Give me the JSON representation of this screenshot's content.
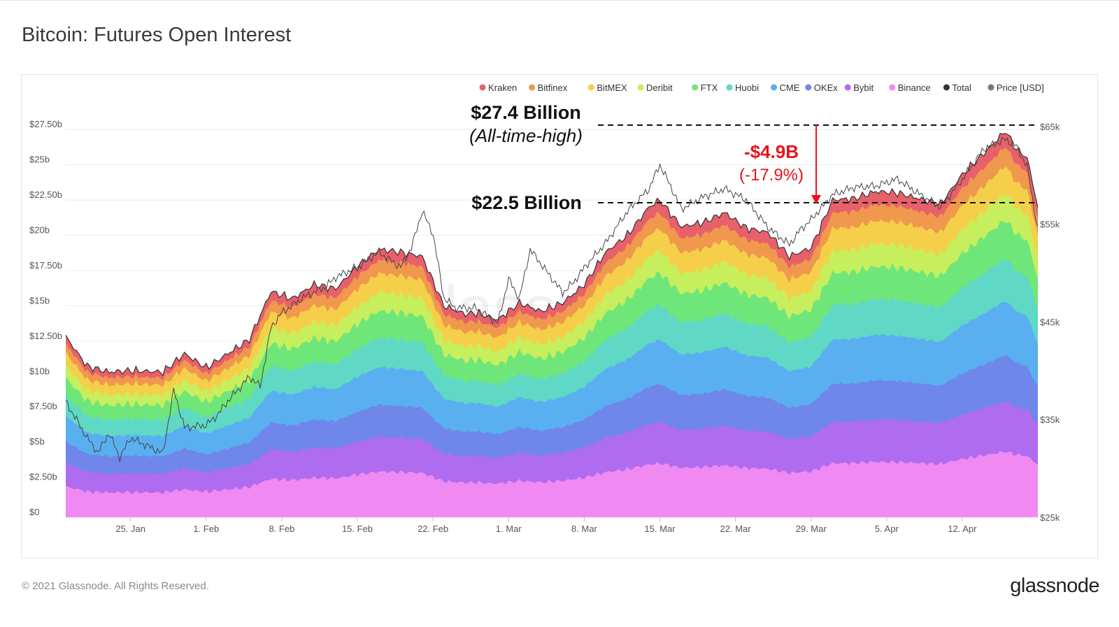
{
  "page": {
    "title": "Bitcoin: Futures Open Interest",
    "copyright": "© 2021 Glassnode. All Rights Reserved.",
    "brand": "glassnode",
    "watermark": "glassnode"
  },
  "chart_data": {
    "type": "area",
    "stacked": true,
    "title": "Bitcoin: Futures Open Interest",
    "x_ticks": [
      "25. Jan",
      "1. Feb",
      "8. Feb",
      "15. Feb",
      "22. Feb",
      "1. Mar",
      "8. Mar",
      "15. Mar",
      "22. Mar",
      "29. Mar",
      "5. Apr",
      "12. Apr"
    ],
    "x_tick_days": [
      6,
      13,
      20,
      27,
      34,
      41,
      48,
      55,
      62,
      69,
      76,
      83
    ],
    "x_range_days": [
      0,
      90
    ],
    "y_left": {
      "ticks": [
        "$0",
        "$2.50b",
        "$5b",
        "$7.50b",
        "$10b",
        "$12.50b",
        "$15b",
        "$17.50b",
        "$20b",
        "$22.50b",
        "$25b",
        "$27.50b"
      ],
      "tick_values": [
        0,
        2.5,
        5,
        7.5,
        10,
        12.5,
        15,
        17.5,
        20,
        22.5,
        25,
        27.5
      ],
      "range": [
        0,
        28.75
      ]
    },
    "y_right": {
      "ticks": [
        "$25k",
        "$35k",
        "$45k",
        "$55k",
        "$65k"
      ],
      "tick_values": [
        25000,
        35000,
        45000,
        55000,
        65000
      ],
      "range": [
        25000,
        66500
      ]
    },
    "legend": [
      {
        "name": "Kraken",
        "color": "#e8606a"
      },
      {
        "name": "Bitfinex",
        "color": "#f0984e"
      },
      {
        "name": "BitMEX",
        "color": "#f5cf4a"
      },
      {
        "name": "Deribit",
        "color": "#c7ee5c"
      },
      {
        "name": "FTX",
        "color": "#6ee67a"
      },
      {
        "name": "Huobi",
        "color": "#5fd8c5"
      },
      {
        "name": "CME",
        "color": "#5aaff0"
      },
      {
        "name": "OKEx",
        "color": "#6f86ea"
      },
      {
        "name": "Bybit",
        "color": "#b06cf0"
      },
      {
        "name": "Binance",
        "color": "#f08af2"
      },
      {
        "name": "Total",
        "color": "#333333"
      },
      {
        "name": "Price [USD]",
        "color": "#777777"
      }
    ],
    "series_bottom_to_top": [
      "Binance",
      "Bybit",
      "OKEx",
      "CME",
      "Huobi",
      "FTX",
      "Deribit",
      "BitMEX",
      "Bitfinex",
      "Kraken"
    ],
    "total_open_interest_b": {
      "x": [
        0,
        2,
        4,
        6,
        9,
        11,
        13,
        15,
        17,
        19,
        21,
        23,
        25,
        27,
        29,
        31,
        33,
        35,
        37,
        38,
        40,
        42,
        44,
        46,
        48,
        50,
        52,
        54,
        55,
        57,
        59,
        61,
        63,
        65,
        67,
        69,
        71,
        73,
        75,
        77,
        79,
        81,
        83,
        85,
        87,
        88,
        89,
        90
      ],
      "y": [
        12.8,
        10.7,
        10.3,
        10.4,
        10.3,
        11.6,
        10.6,
        11.6,
        12.6,
        16.0,
        15.5,
        16.5,
        16.2,
        17.8,
        19.0,
        18.8,
        18.5,
        15.0,
        14.4,
        14.5,
        14.0,
        15.2,
        14.6,
        15.2,
        16.5,
        18.8,
        20.0,
        22.0,
        22.5,
        20.6,
        20.9,
        21.6,
        20.5,
        20.2,
        18.5,
        19.1,
        22.5,
        22.6,
        23.1,
        23.0,
        22.6,
        22.2,
        24.3,
        25.8,
        27.4,
        26.1,
        25.5,
        22.0
      ]
    },
    "layer_share_bottom_to_top": [
      0.17,
      0.3,
      0.42,
      0.56,
      0.67,
      0.77,
      0.84,
      0.91,
      0.96,
      1.0
    ],
    "price_usd": {
      "x": [
        0,
        2,
        3,
        4,
        5,
        6,
        7,
        9,
        10,
        11,
        13,
        14,
        15,
        17,
        18,
        19,
        20,
        22,
        24,
        25,
        27,
        29,
        31,
        32,
        33,
        34,
        35,
        36,
        38,
        40,
        41,
        42,
        43,
        44,
        45,
        46,
        47,
        48,
        50,
        52,
        54,
        55,
        56,
        57,
        59,
        61,
        63,
        65,
        67,
        68,
        69,
        71,
        73,
        75,
        77,
        79,
        81,
        83,
        85,
        87,
        88,
        89,
        90
      ],
      "y": [
        36800,
        33000,
        31500,
        33500,
        31000,
        33000,
        32500,
        31500,
        38000,
        34200,
        34500,
        35500,
        37000,
        39500,
        38500,
        44500,
        46000,
        47500,
        48500,
        49500,
        50500,
        52000,
        50500,
        52500,
        56300,
        54000,
        47500,
        46500,
        46500,
        45000,
        49500,
        47500,
        52500,
        51000,
        49500,
        48000,
        49000,
        50500,
        53000,
        56200,
        58500,
        61000,
        58800,
        56500,
        57800,
        58700,
        57600,
        54800,
        53000,
        54500,
        55500,
        58000,
        58700,
        58800,
        59500,
        58000,
        56700,
        59600,
        62800,
        63800,
        63100,
        61000,
        54500
      ]
    },
    "annotations": [
      {
        "label": "$27.4 Billion",
        "sublabel": "(All-time-high)",
        "value_b": 27.4
      },
      {
        "label": "$22.5 Billion",
        "value_b": 22.5
      },
      {
        "label": "-$4.9B",
        "sublabel": "(-17.9%)",
        "color": "#e8141b"
      }
    ]
  }
}
